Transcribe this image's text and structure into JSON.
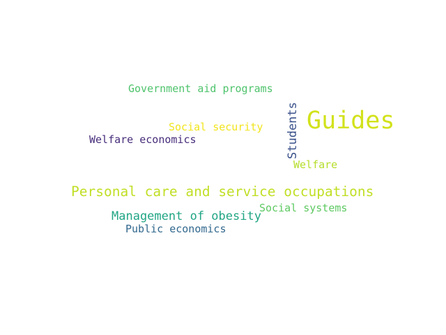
{
  "words": [
    {
      "id": "w-government",
      "text": "Government aid programs",
      "color": "#4ec36b"
    },
    {
      "id": "w-guides",
      "text": "Guides",
      "color": "#d2e21b"
    },
    {
      "id": "w-students",
      "text": "Students",
      "color": "#3b528b",
      "orientation": "vertical"
    },
    {
      "id": "w-social-sec",
      "text": "Social security",
      "color": "#f1e51d"
    },
    {
      "id": "w-welfare-ec",
      "text": "Welfare economics",
      "color": "#472d7b"
    },
    {
      "id": "w-welfare",
      "text": "Welfare",
      "color": "#b5de2b"
    },
    {
      "id": "w-personal",
      "text": "Personal care and service occupations",
      "color": "#c0df25"
    },
    {
      "id": "w-soc-sys",
      "text": "Social systems",
      "color": "#5ec962"
    },
    {
      "id": "w-obesity",
      "text": "Management of obesity",
      "color": "#21a585"
    },
    {
      "id": "w-pub-econ",
      "text": "Public economics",
      "color": "#31688e"
    }
  ]
}
